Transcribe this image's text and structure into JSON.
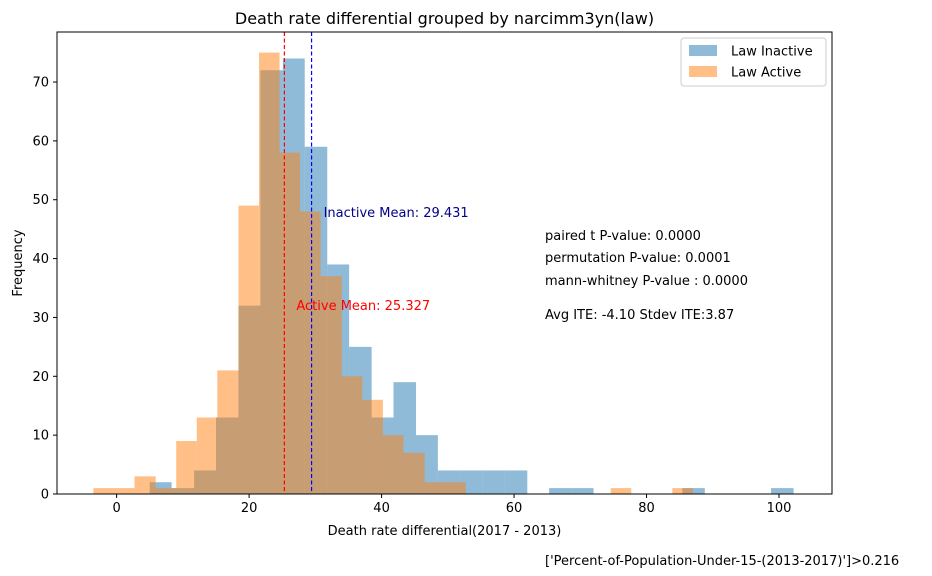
{
  "chart_data": {
    "type": "histogram",
    "title": "Death rate differential grouped by narcimm3yn(law)",
    "xlabel": "Death rate differential(2017 - 2013)",
    "ylabel": "Frequency",
    "xlim": [
      -9,
      108
    ],
    "ylim": [
      0,
      78.5
    ],
    "x_ticks": [
      0,
      20,
      40,
      60,
      80,
      100
    ],
    "y_ticks": [
      0,
      10,
      20,
      30,
      40,
      50,
      60,
      70
    ],
    "grid": false,
    "legend_position": "top-right",
    "series": [
      {
        "name": "Law Inactive",
        "color": "#1f77b4",
        "alpha": 0.5,
        "bins": [
          [
            5.0,
            8.3,
            2
          ],
          [
            8.3,
            11.7,
            1
          ],
          [
            11.7,
            15.0,
            4
          ],
          [
            15.0,
            18.4,
            13
          ],
          [
            18.4,
            21.7,
            32
          ],
          [
            21.7,
            25.1,
            72
          ],
          [
            25.1,
            28.4,
            74
          ],
          [
            28.4,
            31.8,
            59
          ],
          [
            31.8,
            35.1,
            39
          ],
          [
            35.1,
            38.5,
            25
          ],
          [
            38.5,
            41.8,
            13
          ],
          [
            41.8,
            45.2,
            19
          ],
          [
            45.2,
            48.5,
            10
          ],
          [
            48.5,
            51.9,
            4
          ],
          [
            51.9,
            55.2,
            4
          ],
          [
            55.2,
            58.6,
            4
          ],
          [
            58.6,
            62.0,
            4
          ],
          [
            62.0,
            65.3,
            0
          ],
          [
            65.3,
            68.7,
            1
          ],
          [
            68.7,
            72.0,
            1
          ],
          [
            72.0,
            75.4,
            0
          ],
          [
            75.4,
            78.7,
            0
          ],
          [
            78.7,
            82.1,
            0
          ],
          [
            82.1,
            85.4,
            0
          ],
          [
            85.4,
            88.8,
            1
          ],
          [
            88.8,
            92.1,
            0
          ],
          [
            92.1,
            95.5,
            0
          ],
          [
            95.5,
            98.8,
            0
          ],
          [
            98.8,
            102.2,
            1
          ]
        ],
        "mean": 29.431,
        "mean_label": "Inactive Mean: 29.431",
        "mean_line_color": "#0000ff"
      },
      {
        "name": "Law Active",
        "color": "#ff7f0e",
        "alpha": 0.5,
        "bins": [
          [
            -3.5,
            -0.4,
            1
          ],
          [
            -0.4,
            2.7,
            1
          ],
          [
            2.7,
            5.9,
            3
          ],
          [
            5.9,
            9.0,
            1
          ],
          [
            9.0,
            12.1,
            9
          ],
          [
            12.1,
            15.2,
            13
          ],
          [
            15.2,
            18.4,
            21
          ],
          [
            18.4,
            21.5,
            49
          ],
          [
            21.5,
            24.6,
            75
          ],
          [
            24.6,
            27.7,
            58
          ],
          [
            27.7,
            30.8,
            48
          ],
          [
            30.8,
            34.0,
            37
          ],
          [
            34.0,
            37.1,
            20
          ],
          [
            37.1,
            40.2,
            16
          ],
          [
            40.2,
            43.3,
            10
          ],
          [
            43.3,
            46.5,
            7
          ],
          [
            46.5,
            49.6,
            2
          ],
          [
            49.6,
            52.7,
            2
          ],
          [
            52.7,
            55.8,
            0
          ],
          [
            55.8,
            58.9,
            0
          ],
          [
            58.9,
            62.1,
            0
          ],
          [
            62.1,
            65.2,
            0
          ],
          [
            65.2,
            68.3,
            0
          ],
          [
            68.3,
            71.4,
            0
          ],
          [
            71.4,
            74.6,
            0
          ],
          [
            74.6,
            77.7,
            1
          ],
          [
            77.7,
            80.8,
            0
          ],
          [
            80.8,
            83.9,
            0
          ],
          [
            83.9,
            87.0,
            1
          ]
        ],
        "mean": 25.327,
        "mean_label": "Active Mean: 25.327",
        "mean_line_color": "#ff0000"
      }
    ],
    "annotations": [
      "paired t P-value: 0.0000",
      "permutation P-value: 0.0001",
      "mann-whitney P-value : 0.0000",
      "Avg ITE: -4.10 Stdev ITE:3.87"
    ],
    "footnote": "['Percent-of-Population-Under-15-(2013-2017)']>0.216"
  }
}
